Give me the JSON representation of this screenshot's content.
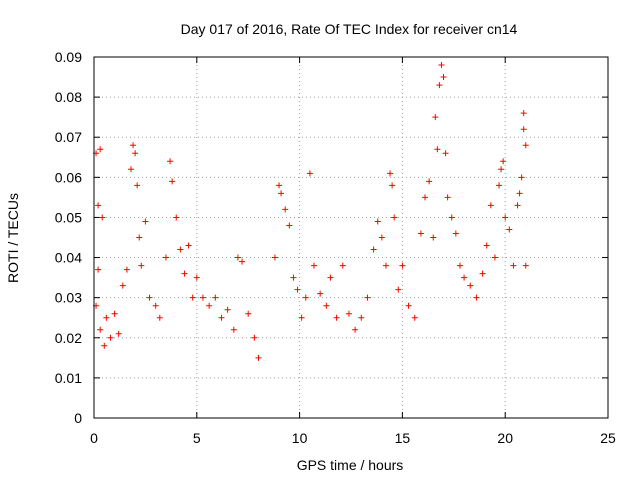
{
  "chart_data": {
    "type": "scatter",
    "title": "Day 017 of 2016, Rate Of TEC Index for receiver cn14",
    "xlabel": "GPS time / hours",
    "ylabel": "ROTI / TECUs",
    "xlim": [
      0,
      25
    ],
    "ylim": [
      0,
      0.09
    ],
    "xticks": [
      "0",
      "5",
      "10",
      "15",
      "20",
      "25"
    ],
    "yticks": [
      "0",
      "0.01",
      "0.02",
      "0.03",
      "0.04",
      "0.05",
      "0.06",
      "0.07",
      "0.08",
      "0.09"
    ],
    "grid": true,
    "marker": "+",
    "color": "#ff0000",
    "series": [
      {
        "points": [
          [
            0.1,
            0.066
          ],
          [
            0.2,
            0.053
          ],
          [
            0.3,
            0.067
          ],
          [
            0.4,
            0.05
          ],
          [
            0.2,
            0.037
          ],
          [
            0.1,
            0.028
          ],
          [
            0.3,
            0.022
          ],
          [
            0.5,
            0.018
          ],
          [
            0.6,
            0.025
          ],
          [
            0.8,
            0.02
          ],
          [
            1.0,
            0.026
          ],
          [
            1.2,
            0.021
          ],
          [
            1.4,
            0.033
          ],
          [
            1.6,
            0.037
          ],
          [
            1.8,
            0.062
          ],
          [
            1.9,
            0.068
          ],
          [
            2.0,
            0.066
          ],
          [
            2.1,
            0.058
          ],
          [
            2.2,
            0.045
          ],
          [
            2.3,
            0.038
          ],
          [
            2.5,
            0.049
          ],
          [
            2.7,
            0.03
          ],
          [
            3.0,
            0.028
          ],
          [
            3.2,
            0.025
          ],
          [
            3.5,
            0.04
          ],
          [
            3.7,
            0.064
          ],
          [
            3.8,
            0.059
          ],
          [
            4.0,
            0.05
          ],
          [
            4.2,
            0.042
          ],
          [
            4.4,
            0.036
          ],
          [
            4.6,
            0.043
          ],
          [
            4.8,
            0.03
          ],
          [
            5.0,
            0.035
          ],
          [
            5.3,
            0.03
          ],
          [
            5.6,
            0.028
          ],
          [
            5.9,
            0.03
          ],
          [
            6.2,
            0.025
          ],
          [
            6.5,
            0.027
          ],
          [
            6.8,
            0.022
          ],
          [
            7.0,
            0.04
          ],
          [
            7.2,
            0.039
          ],
          [
            7.5,
            0.026
          ],
          [
            7.8,
            0.02
          ],
          [
            8.0,
            0.015
          ],
          [
            8.8,
            0.04
          ],
          [
            9.0,
            0.058
          ],
          [
            9.1,
            0.056
          ],
          [
            9.3,
            0.052
          ],
          [
            9.5,
            0.048
          ],
          [
            9.7,
            0.035
          ],
          [
            9.9,
            0.032
          ],
          [
            10.1,
            0.025
          ],
          [
            10.3,
            0.03
          ],
          [
            10.5,
            0.061
          ],
          [
            10.7,
            0.038
          ],
          [
            11.0,
            0.031
          ],
          [
            11.3,
            0.028
          ],
          [
            11.5,
            0.035
          ],
          [
            11.8,
            0.025
          ],
          [
            12.1,
            0.038
          ],
          [
            12.4,
            0.026
          ],
          [
            12.7,
            0.022
          ],
          [
            13.0,
            0.025
          ],
          [
            13.3,
            0.03
          ],
          [
            13.6,
            0.042
          ],
          [
            13.8,
            0.049
          ],
          [
            14.0,
            0.045
          ],
          [
            14.2,
            0.038
          ],
          [
            14.4,
            0.061
          ],
          [
            14.5,
            0.058
          ],
          [
            14.6,
            0.05
          ],
          [
            14.8,
            0.032
          ],
          [
            15.0,
            0.038
          ],
          [
            15.3,
            0.028
          ],
          [
            15.6,
            0.025
          ],
          [
            15.9,
            0.046
          ],
          [
            16.1,
            0.055
          ],
          [
            16.3,
            0.059
          ],
          [
            16.5,
            0.045
          ],
          [
            16.6,
            0.075
          ],
          [
            16.7,
            0.067
          ],
          [
            16.8,
            0.083
          ],
          [
            16.9,
            0.088
          ],
          [
            17.0,
            0.085
          ],
          [
            17.1,
            0.066
          ],
          [
            17.2,
            0.055
          ],
          [
            17.4,
            0.05
          ],
          [
            17.6,
            0.046
          ],
          [
            17.8,
            0.038
          ],
          [
            18.0,
            0.035
          ],
          [
            18.3,
            0.033
          ],
          [
            18.6,
            0.03
          ],
          [
            18.9,
            0.036
          ],
          [
            19.1,
            0.043
          ],
          [
            19.3,
            0.053
          ],
          [
            19.5,
            0.04
          ],
          [
            19.7,
            0.058
          ],
          [
            19.8,
            0.062
          ],
          [
            19.9,
            0.064
          ],
          [
            20.0,
            0.05
          ],
          [
            20.2,
            0.047
          ],
          [
            20.4,
            0.038
          ],
          [
            20.6,
            0.053
          ],
          [
            20.7,
            0.056
          ],
          [
            20.8,
            0.06
          ],
          [
            20.9,
            0.072
          ],
          [
            20.9,
            0.076
          ],
          [
            21.0,
            0.068
          ],
          [
            21.0,
            0.038
          ]
        ]
      }
    ]
  }
}
